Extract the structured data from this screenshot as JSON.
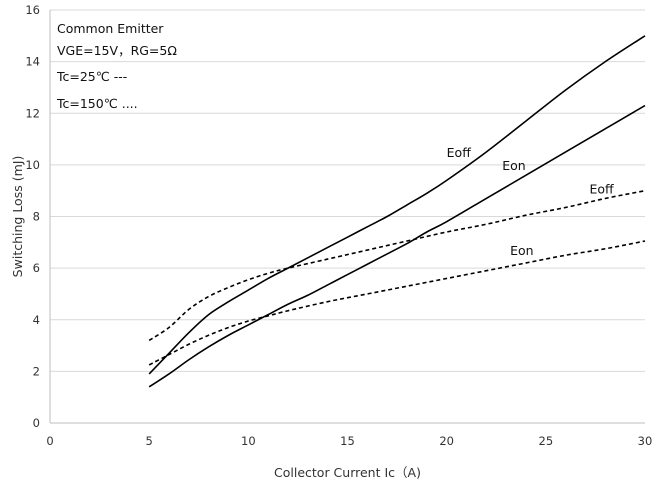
{
  "chart_data": {
    "type": "line",
    "xlabel": "Collector Current Ic（A)",
    "ylabel": "Switching Loss (mJ)",
    "xlim": [
      0,
      30
    ],
    "ylim": [
      0,
      16
    ],
    "x_ticks": [
      0,
      5,
      10,
      15,
      20,
      25,
      30
    ],
    "y_ticks": [
      0,
      2,
      4,
      6,
      8,
      10,
      12,
      14,
      16
    ],
    "grid": "horizontal",
    "annotations": [
      "Common Emitter",
      "VGE=15V，RG=5Ω",
      "Tc=25℃   ---",
      "Tc=150℃ ...."
    ],
    "series": [
      {
        "name": "Eoff",
        "style": "solid",
        "x": [
          5,
          6,
          7,
          8,
          9,
          10,
          11,
          12,
          13,
          14,
          15,
          16,
          17,
          18,
          19,
          20,
          22,
          24,
          26,
          28,
          30
        ],
        "y": [
          1.9,
          2.7,
          3.5,
          4.2,
          4.7,
          5.15,
          5.6,
          6.0,
          6.4,
          6.8,
          7.2,
          7.6,
          8.0,
          8.45,
          8.9,
          9.4,
          10.5,
          11.7,
          12.9,
          14.0,
          15.0
        ]
      },
      {
        "name": "Eon",
        "style": "solid",
        "x": [
          5,
          6,
          7,
          8,
          9,
          10,
          11,
          12,
          13,
          14,
          15,
          16,
          17,
          18,
          19,
          20,
          22,
          24,
          26,
          28,
          30
        ],
        "y": [
          1.4,
          1.9,
          2.45,
          2.95,
          3.4,
          3.8,
          4.2,
          4.6,
          4.95,
          5.35,
          5.75,
          6.15,
          6.55,
          6.95,
          7.4,
          7.8,
          8.7,
          9.6,
          10.5,
          11.4,
          12.3
        ]
      },
      {
        "name": "Eoff",
        "style": "dashed",
        "x": [
          5,
          6,
          7,
          8,
          9,
          10,
          11,
          12,
          14,
          16,
          18,
          20,
          22,
          24,
          26,
          28,
          30
        ],
        "y": [
          3.2,
          3.7,
          4.4,
          4.9,
          5.25,
          5.55,
          5.8,
          6.0,
          6.35,
          6.7,
          7.05,
          7.4,
          7.7,
          8.05,
          8.35,
          8.7,
          9.0
        ]
      },
      {
        "name": "Eon",
        "style": "dashed",
        "x": [
          5,
          6,
          7,
          8,
          9,
          10,
          11,
          12,
          14,
          16,
          18,
          20,
          22,
          24,
          26,
          28,
          30
        ],
        "y": [
          2.25,
          2.65,
          3.05,
          3.4,
          3.7,
          3.95,
          4.15,
          4.35,
          4.7,
          5.0,
          5.3,
          5.6,
          5.9,
          6.2,
          6.5,
          6.75,
          7.05
        ]
      }
    ],
    "series_labels": [
      {
        "text": "Eoff",
        "x": 20,
        "y": 10.3
      },
      {
        "text": "Eon",
        "x": 22.8,
        "y": 9.8
      },
      {
        "text": "Eoff",
        "x": 27.2,
        "y": 8.9
      },
      {
        "text": "Eon",
        "x": 23.2,
        "y": 6.5
      }
    ]
  }
}
